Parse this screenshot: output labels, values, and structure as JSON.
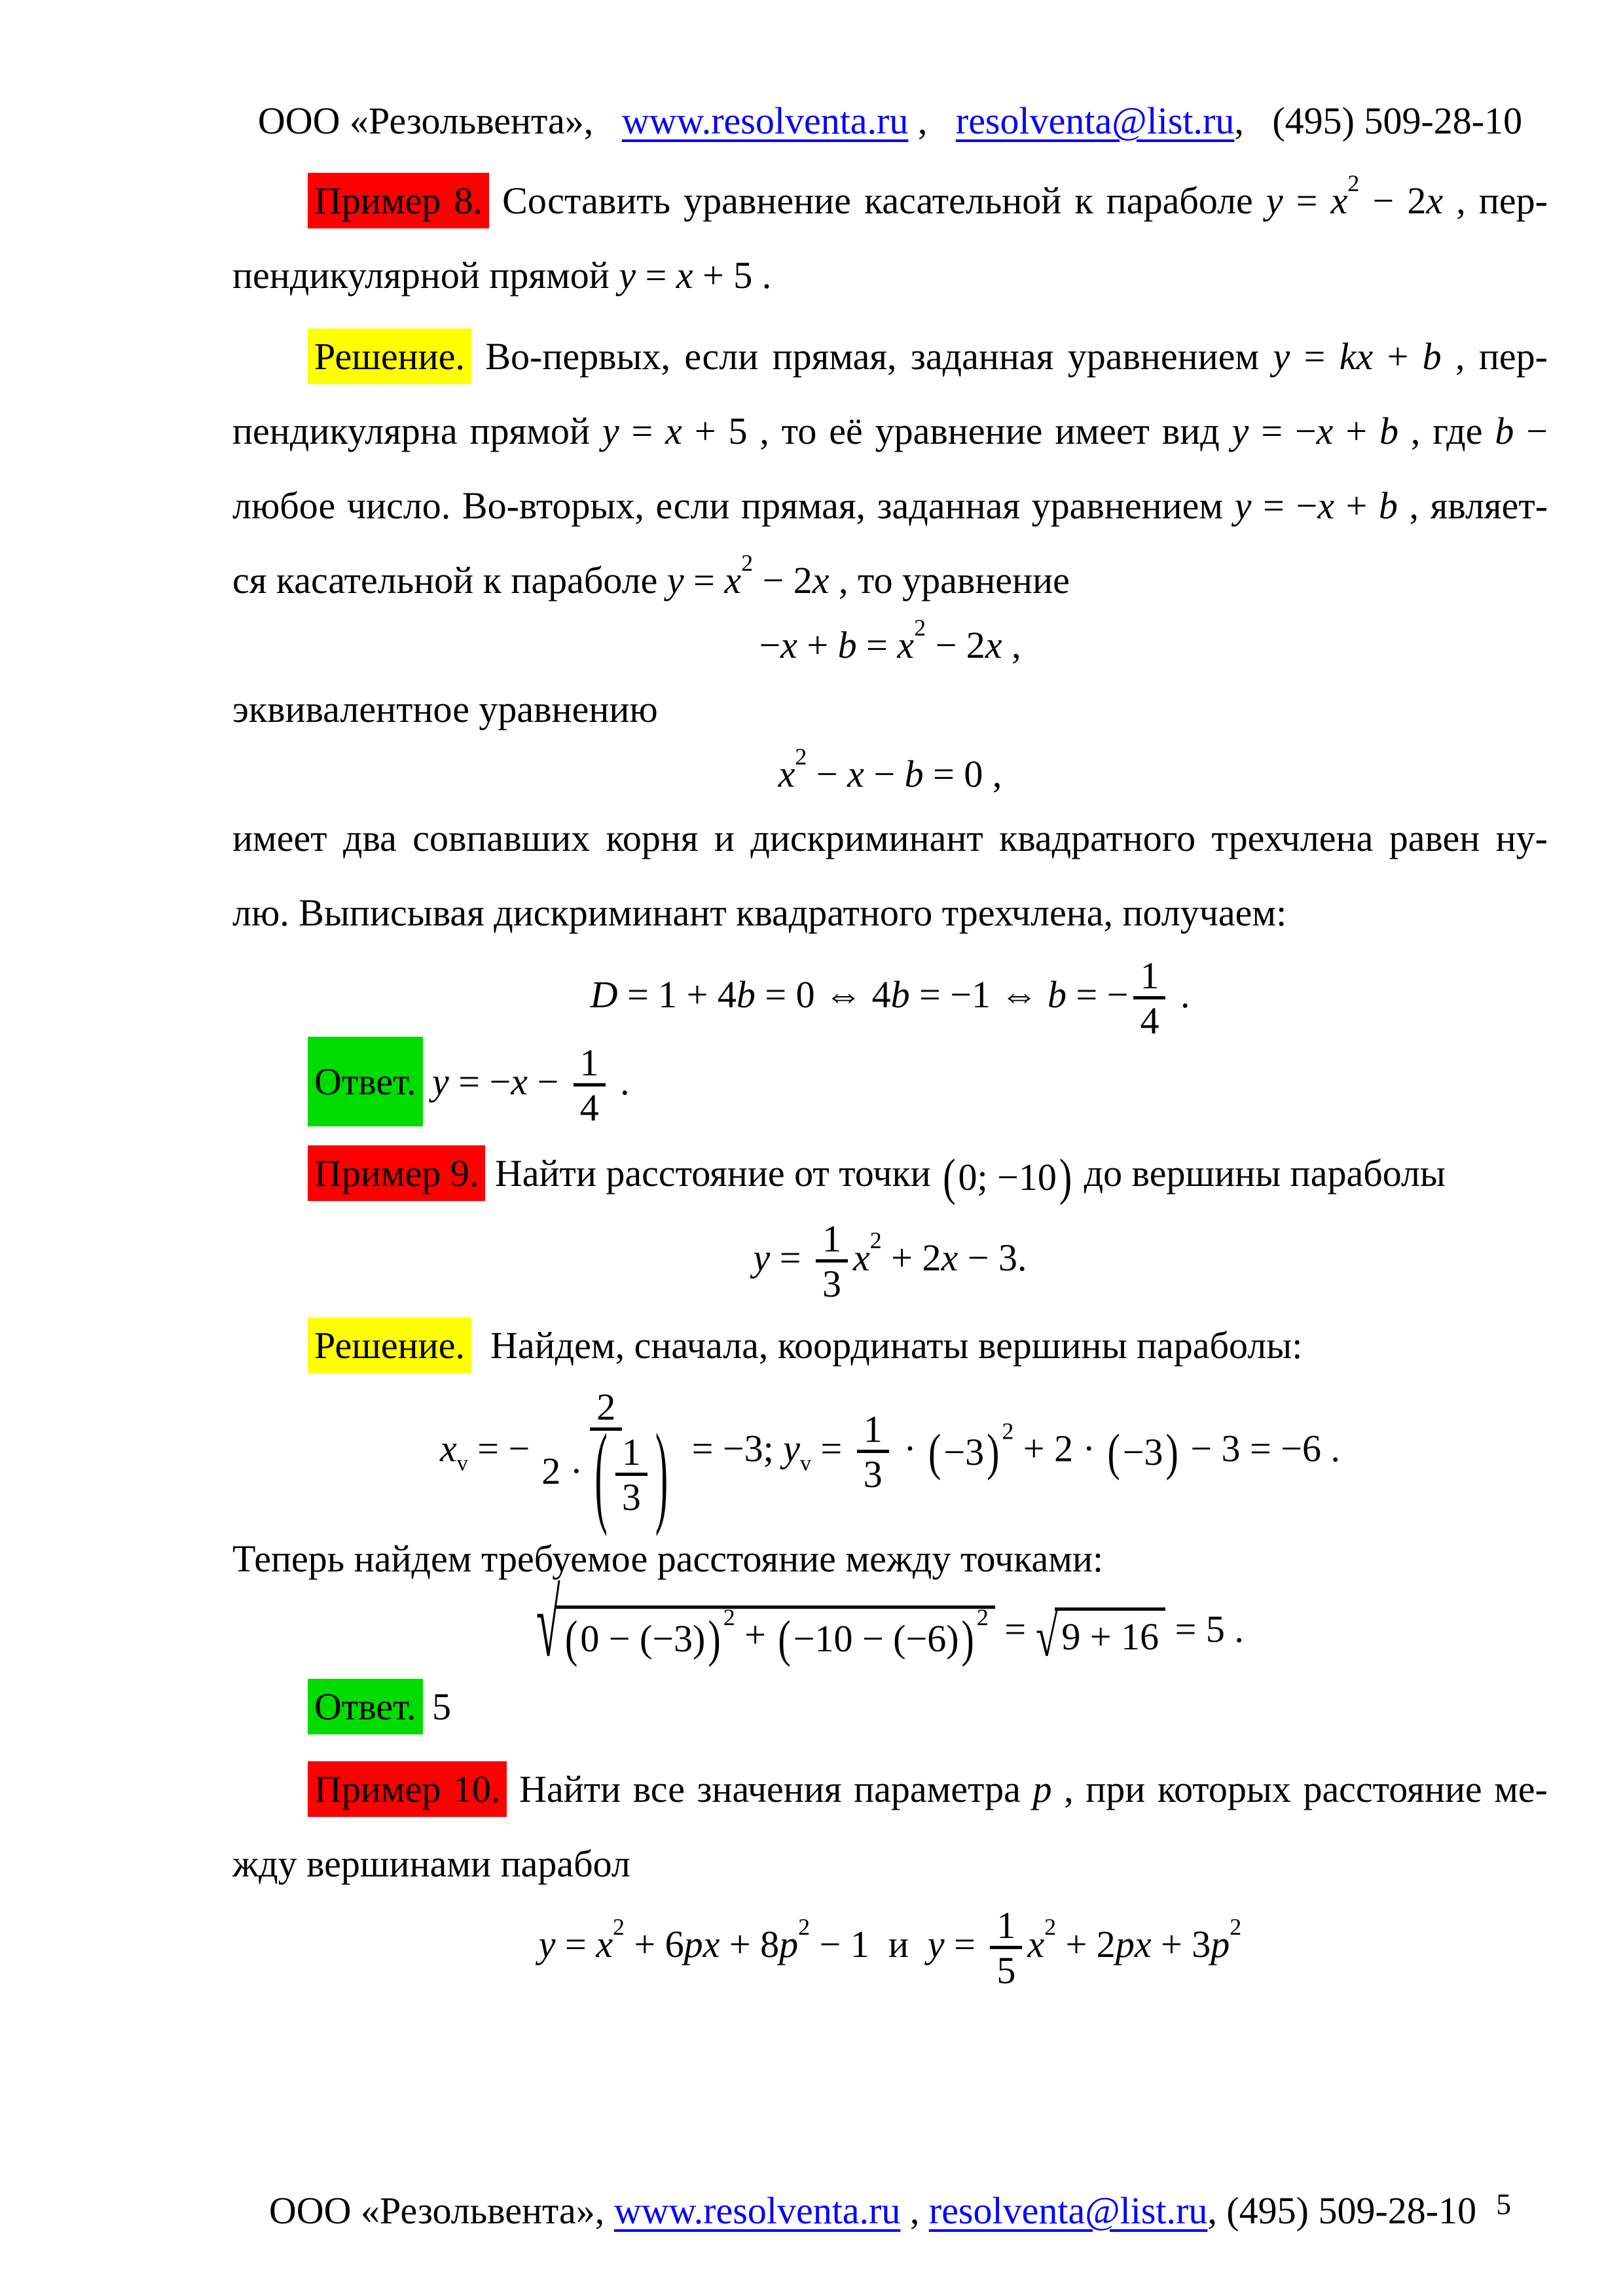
{
  "colors": {
    "red": "#ff0000",
    "yellow": "#ffff00",
    "green": "#00dc00",
    "link": "#0000ff",
    "text": "#000000"
  },
  "header": {
    "segments": [
      {
        "t": "r",
        "v": "ООО «Резольвента»,   "
      },
      {
        "t": "a",
        "v": "www.resolventa.ru",
        "name": "resolventa-url-link"
      },
      {
        "t": "r",
        "v": " ,   "
      },
      {
        "t": "a",
        "v": "resolventa@list.ru",
        "name": "resolventa-email-link"
      },
      {
        "t": "r",
        "v": ",   (495) 509-28-10"
      }
    ]
  },
  "footer": {
    "segments": [
      {
        "t": "r",
        "v": "ООО «Резольвента», "
      },
      {
        "t": "a",
        "v": "www.resolventa.ru",
        "name": "resolventa-url-link"
      },
      {
        "t": "r",
        "v": " , "
      },
      {
        "t": "a",
        "v": "resolventa@list.ru",
        "name": "resolventa-email-link"
      },
      {
        "t": "r",
        "v": ", (495) 509-28-10"
      },
      {
        "t": "pg",
        "v": "5"
      }
    ]
  },
  "blocks": {
    "p1": {
      "lines": [
        [
          {
            "t": "hl",
            "v": "Пример 8.",
            "bg": "red"
          },
          {
            "t": "r",
            "v": " Составить уравнение касательной к параболе "
          },
          {
            "t": "i",
            "v": "y"
          },
          {
            "t": "r",
            "v": " = "
          },
          {
            "t": "i",
            "v": "x"
          },
          {
            "t": "sup",
            "v": "2"
          },
          {
            "t": "r",
            "v": " − 2"
          },
          {
            "t": "i",
            "v": "x"
          },
          {
            "t": "r",
            "v": " , пер-"
          }
        ],
        [
          {
            "t": "r",
            "v": "пендикулярной прямой "
          },
          {
            "t": "i",
            "v": "y"
          },
          {
            "t": "r",
            "v": " = "
          },
          {
            "t": "i",
            "v": "x"
          },
          {
            "t": "r",
            "v": " + 5 ."
          }
        ]
      ]
    },
    "p2": {
      "lines": [
        [
          {
            "t": "hl",
            "v": "Решение.",
            "bg": "yellow"
          },
          {
            "t": "r",
            "v": " Во-первых, если прямая, заданная уравнением "
          },
          {
            "t": "i",
            "v": "y"
          },
          {
            "t": "r",
            "v": " = "
          },
          {
            "t": "i",
            "v": "kx"
          },
          {
            "t": "r",
            "v": " + "
          },
          {
            "t": "i",
            "v": "b"
          },
          {
            "t": "r",
            "v": " , пер-"
          }
        ],
        [
          {
            "t": "r",
            "v": "пендикулярна прямой "
          },
          {
            "t": "i",
            "v": "y"
          },
          {
            "t": "r",
            "v": " = "
          },
          {
            "t": "i",
            "v": "x"
          },
          {
            "t": "r",
            "v": " + 5 , то её уравнение имеет вид "
          },
          {
            "t": "i",
            "v": "y"
          },
          {
            "t": "r",
            "v": " = −"
          },
          {
            "t": "i",
            "v": "x"
          },
          {
            "t": "r",
            "v": " + "
          },
          {
            "t": "i",
            "v": "b"
          },
          {
            "t": "r",
            "v": " , где "
          },
          {
            "t": "i",
            "v": "b"
          },
          {
            "t": "r",
            "v": " −"
          }
        ],
        [
          {
            "t": "r",
            "v": "любое число. Во-вторых, если прямая, заданная уравнением "
          },
          {
            "t": "i",
            "v": "y"
          },
          {
            "t": "r",
            "v": " = −"
          },
          {
            "t": "i",
            "v": "x"
          },
          {
            "t": "r",
            "v": " + "
          },
          {
            "t": "i",
            "v": "b"
          },
          {
            "t": "r",
            "v": " , являет-"
          }
        ],
        [
          {
            "t": "r",
            "v": "ся касательной к параболе "
          },
          {
            "t": "i",
            "v": "y"
          },
          {
            "t": "r",
            "v": " = "
          },
          {
            "t": "i",
            "v": "x"
          },
          {
            "t": "sup",
            "v": "2"
          },
          {
            "t": "r",
            "v": " − 2"
          },
          {
            "t": "i",
            "v": "x"
          },
          {
            "t": "r",
            "v": " , то уравнение"
          }
        ]
      ]
    },
    "eq1": {
      "segments": [
        {
          "t": "r",
          "v": "−"
        },
        {
          "t": "i",
          "v": "x"
        },
        {
          "t": "r",
          "v": " + "
        },
        {
          "t": "i",
          "v": "b"
        },
        {
          "t": "r",
          "v": " = "
        },
        {
          "t": "i",
          "v": "x"
        },
        {
          "t": "sup",
          "v": "2"
        },
        {
          "t": "r",
          "v": " − 2"
        },
        {
          "t": "i",
          "v": "x"
        },
        {
          "t": "r",
          "v": " ,"
        }
      ]
    },
    "p3": {
      "lines": [
        [
          {
            "t": "r",
            "v": "эквивалентное уравнению"
          }
        ]
      ]
    },
    "eq2": {
      "segments": [
        {
          "t": "i",
          "v": "x"
        },
        {
          "t": "sup",
          "v": "2"
        },
        {
          "t": "r",
          "v": " − "
        },
        {
          "t": "i",
          "v": "x"
        },
        {
          "t": "r",
          "v": " − "
        },
        {
          "t": "i",
          "v": "b"
        },
        {
          "t": "r",
          "v": " = 0 ,"
        }
      ]
    },
    "p4": {
      "lines": [
        [
          {
            "t": "r",
            "v": "имеет два совпавших корня и дискриминант квадратного трехчлена равен ну-"
          }
        ],
        [
          {
            "t": "r",
            "v": "лю. Выписывая дискриминант квадратного трехчлена, получаем:"
          }
        ]
      ]
    },
    "eq3": {
      "segments": [
        {
          "t": "i",
          "v": "D"
        },
        {
          "t": "r",
          "v": " = 1 + 4"
        },
        {
          "t": "i",
          "v": "b"
        },
        {
          "t": "r",
          "v": " = 0 ⇔ 4"
        },
        {
          "t": "i",
          "v": "b"
        },
        {
          "t": "r",
          "v": " = −1 ⇔ "
        },
        {
          "t": "i",
          "v": "b"
        },
        {
          "t": "r",
          "v": " = −"
        },
        {
          "t": "f",
          "n": [
            "1"
          ],
          "d": [
            "4"
          ]
        },
        {
          "t": "r",
          "v": " ."
        }
      ]
    },
    "ans8": {
      "lines": [
        [
          {
            "t": "hl",
            "v": "Ответ.",
            "bg": "green",
            "big": true
          },
          {
            "t": "r",
            "v": " "
          },
          {
            "t": "i",
            "v": "y"
          },
          {
            "t": "r",
            "v": " = −"
          },
          {
            "t": "i",
            "v": "x"
          },
          {
            "t": "r",
            "v": " − "
          },
          {
            "t": "f",
            "n": [
              "1"
            ],
            "d": [
              "4"
            ]
          },
          {
            "t": "r",
            "v": " ."
          }
        ]
      ]
    },
    "p5": {
      "lines": [
        [
          {
            "t": "hl",
            "v": "Пример 9.",
            "bg": "red"
          },
          {
            "t": "r",
            "v": " Найти расстояние от точки "
          },
          {
            "t": "p",
            "sc": "sm",
            "c": [
              "0; −10"
            ]
          },
          {
            "t": "r",
            "v": " до вершины параболы"
          }
        ]
      ]
    },
    "eq4": {
      "segments": [
        {
          "t": "i",
          "v": "y"
        },
        {
          "t": "r",
          "v": " = "
        },
        {
          "t": "f",
          "n": [
            "1"
          ],
          "d": [
            "3"
          ]
        },
        {
          "t": "i",
          "v": "x"
        },
        {
          "t": "sup",
          "v": "2"
        },
        {
          "t": "r",
          "v": " + 2"
        },
        {
          "t": "i",
          "v": "x"
        },
        {
          "t": "r",
          "v": " − 3."
        }
      ]
    },
    "p6": {
      "lines": [
        [
          {
            "t": "hl",
            "v": "Решение.",
            "bg": "yellow"
          },
          {
            "t": "r",
            "v": "  Найдем, сначала, координаты вершины параболы:"
          }
        ]
      ]
    },
    "eq5": {
      "segments": [
        {
          "t": "i",
          "v": "x"
        },
        {
          "t": "sub",
          "v": "v"
        },
        {
          "t": "r",
          "v": " = −"
        },
        {
          "t": "f",
          "n": [
            "2"
          ],
          "d": [
            {
              "t": "r",
              "v": "2 · "
            },
            {
              "t": "p",
              "sc": "lg",
              "c": [
                {
                  "t": "f",
                  "n": [
                    "1"
                  ],
                  "d": [
                    "3"
                  ]
                }
              ]
            }
          ]
        },
        {
          "t": "r",
          "v": " = −3; "
        },
        {
          "t": "i",
          "v": "y"
        },
        {
          "t": "sub",
          "v": "v"
        },
        {
          "t": "r",
          "v": " = "
        },
        {
          "t": "f",
          "n": [
            "1"
          ],
          "d": [
            "3"
          ]
        },
        {
          "t": "r",
          "v": " · "
        },
        {
          "t": "p",
          "sc": "sm",
          "c": [
            "−3"
          ]
        },
        {
          "t": "sup",
          "v": "2"
        },
        {
          "t": "r",
          "v": " + 2 · "
        },
        {
          "t": "p",
          "sc": "sm",
          "c": [
            "−3"
          ]
        },
        {
          "t": "r",
          "v": " − 3 = −6 ."
        }
      ]
    },
    "p7": {
      "lines": [
        [
          {
            "t": "r",
            "v": "Теперь найдем требуемое расстояние между точками:"
          }
        ]
      ]
    },
    "eq6": {
      "segments": [
        {
          "t": "sqrt",
          "tall": true,
          "c": [
            {
              "t": "p",
              "sc": "sm",
              "c": [
                "0 − (−3)"
              ]
            },
            {
              "t": "sup",
              "v": "2"
            },
            {
              "t": "r",
              "v": " + "
            },
            {
              "t": "p",
              "sc": "sm",
              "c": [
                "−10 − (−6)"
              ]
            },
            {
              "t": "sup",
              "v": "2"
            }
          ]
        },
        {
          "t": "r",
          "v": " = "
        },
        {
          "t": "sqrt",
          "c": [
            "9 + 16"
          ]
        },
        {
          "t": "r",
          "v": " = 5 ."
        }
      ]
    },
    "ans9": {
      "lines": [
        [
          {
            "t": "hl",
            "v": "Ответ.",
            "bg": "green"
          },
          {
            "t": "r",
            "v": " 5"
          }
        ]
      ]
    },
    "p8": {
      "lines": [
        [
          {
            "t": "hl",
            "v": "Пример 10.",
            "bg": "red"
          },
          {
            "t": "r",
            "v": " Найти все значения параметра "
          },
          {
            "t": "i",
            "v": "p"
          },
          {
            "t": "r",
            "v": " , при которых расстояние ме-"
          }
        ],
        [
          {
            "t": "r",
            "v": "жду вершинами парабол"
          }
        ]
      ]
    },
    "eq7": {
      "segments": [
        {
          "t": "i",
          "v": "y"
        },
        {
          "t": "r",
          "v": " = "
        },
        {
          "t": "i",
          "v": "x"
        },
        {
          "t": "sup",
          "v": "2"
        },
        {
          "t": "r",
          "v": " + 6"
        },
        {
          "t": "i",
          "v": "px"
        },
        {
          "t": "r",
          "v": " + 8"
        },
        {
          "t": "i",
          "v": "p"
        },
        {
          "t": "sup",
          "v": "2"
        },
        {
          "t": "r",
          "v": " − 1  и  "
        },
        {
          "t": "i",
          "v": "y"
        },
        {
          "t": "r",
          "v": " = "
        },
        {
          "t": "f",
          "n": [
            "1"
          ],
          "d": [
            "5"
          ]
        },
        {
          "t": "i",
          "v": "x"
        },
        {
          "t": "sup",
          "v": "2"
        },
        {
          "t": "r",
          "v": " + 2"
        },
        {
          "t": "i",
          "v": "px"
        },
        {
          "t": "r",
          "v": " + 3"
        },
        {
          "t": "i",
          "v": "p"
        },
        {
          "t": "sup",
          "v": "2"
        }
      ]
    }
  }
}
